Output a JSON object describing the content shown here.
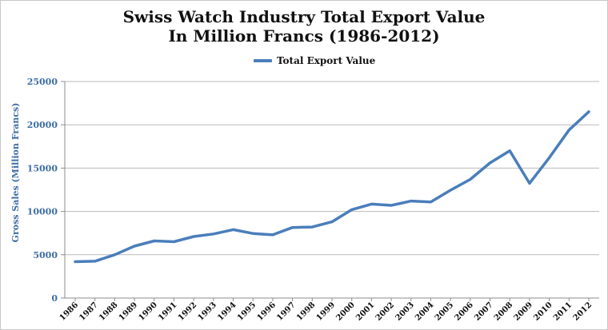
{
  "chart_data": {
    "type": "line",
    "title_line1": "Swiss Watch Industry Total Export Value",
    "title_line2": "In Million Francs (1986-2012)",
    "ylabel": "Gross Sales (Million Francs)",
    "xlabel": "",
    "ylim": [
      0,
      25000
    ],
    "yticks": [
      0,
      5000,
      10000,
      15000,
      20000,
      25000
    ],
    "grid": "horizontal",
    "legend_position": "top-center",
    "colors": {
      "series": "#4a7ebb",
      "axis_text": "#3f6ea8",
      "grid": "#b9b9b9"
    },
    "categories": [
      "1986",
      "1987",
      "1988",
      "1989",
      "1990",
      "1991",
      "1992",
      "1993",
      "1994",
      "1995",
      "1996",
      "1997",
      "1998",
      "1999",
      "2000",
      "2001",
      "2002",
      "2003",
      "2004",
      "2005",
      "2006",
      "2007",
      "2008",
      "2009",
      "2010",
      "2011",
      "2012"
    ],
    "series": [
      {
        "name": "Total Export Value",
        "values": [
          4200,
          4250,
          5000,
          6000,
          6600,
          6500,
          7100,
          7400,
          7900,
          7450,
          7300,
          8150,
          8200,
          8800,
          10200,
          10850,
          10700,
          11200,
          11100,
          12450,
          13700,
          15600,
          17000,
          13250,
          16200,
          19400,
          21500
        ]
      }
    ]
  }
}
